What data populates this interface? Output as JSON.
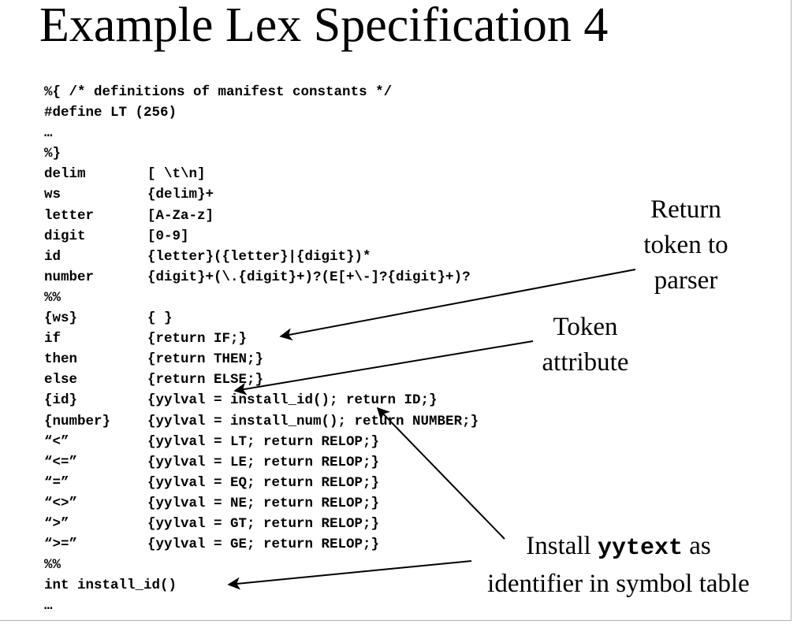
{
  "title": "Example Lex Specification 4",
  "code_lines": [
    [
      "%{ /* definitions of manifest constants */",
      ""
    ],
    [
      "#define LT (256)",
      ""
    ],
    [
      "…",
      ""
    ],
    [
      "%}",
      ""
    ],
    [
      "delim",
      "[ \\t\\n]"
    ],
    [
      "ws",
      "{delim}+"
    ],
    [
      "letter",
      "[A-Za-z]"
    ],
    [
      "digit",
      "[0-9]"
    ],
    [
      "id",
      "{letter}({letter}|{digit})*"
    ],
    [
      "number",
      "{digit}+(\\.{digit}+)?(E[+\\-]?{digit}+)?"
    ],
    [
      "%%",
      ""
    ],
    [
      "{ws}",
      "{ }"
    ],
    [
      "if",
      "{return IF;}"
    ],
    [
      "then",
      "{return THEN;}"
    ],
    [
      "else",
      "{return ELSE;}"
    ],
    [
      "{id}",
      "{yylval = install_id(); return ID;}"
    ],
    [
      "{number}",
      "{yylval = install_num(); return NUMBER;}"
    ],
    [
      "“<”",
      "{yylval = LT; return RELOP;}"
    ],
    [
      "“<=”",
      "{yylval = LE; return RELOP;}"
    ],
    [
      "“=”",
      "{yylval = EQ; return RELOP;}"
    ],
    [
      "“<>”",
      "{yylval = NE; return RELOP;}"
    ],
    [
      "“>”",
      "{yylval = GT; return RELOP;}"
    ],
    [
      "“>=”",
      "{yylval = GE; return RELOP;}"
    ],
    [
      "%%",
      ""
    ],
    [
      "int install_id()",
      ""
    ],
    [
      "…",
      ""
    ]
  ],
  "annotations": {
    "return_token": {
      "line1": "Return",
      "line2": "token to",
      "line3": "parser"
    },
    "token_attribute": {
      "line1": "Token",
      "line2": "attribute"
    },
    "install_yytext": {
      "prefix": "Install ",
      "code": "yytext",
      "suffix": " as",
      "line2": "identifier in symbol table"
    }
  },
  "colors": {
    "text": "#000000",
    "background": "#ffffff",
    "frame": "#b0b0b0"
  }
}
